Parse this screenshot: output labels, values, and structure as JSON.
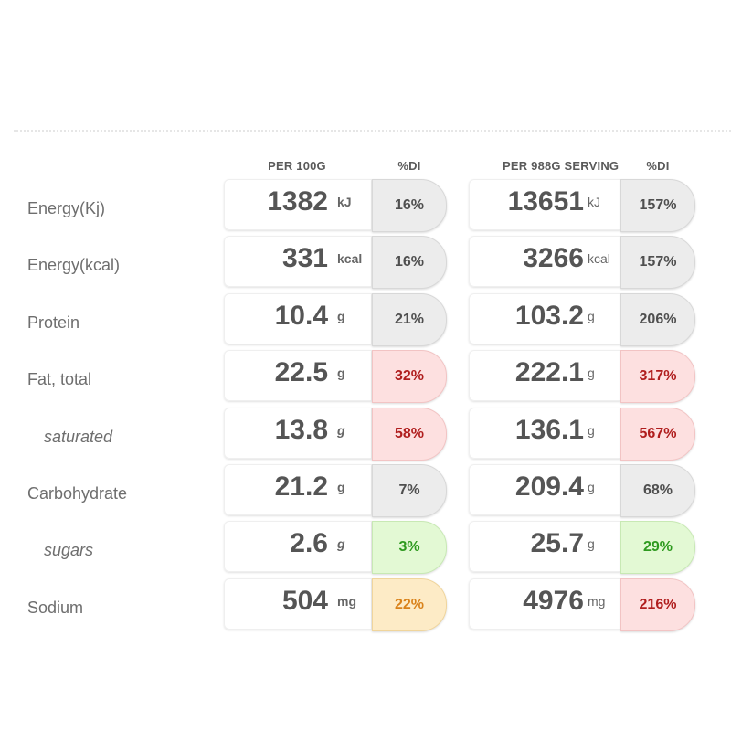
{
  "headers": {
    "per100": "PER 100G",
    "di1": "%DI",
    "serving": "PER 988G SERVING",
    "di2": "%DI"
  },
  "level_colors": {
    "neutral": "#ececec",
    "high": "#fde0e0",
    "low": "#e3f9d4",
    "medium": "#fdebc6"
  },
  "rows": [
    {
      "label": "Energy(Kj)",
      "sub": false,
      "per100": {
        "value": "1382",
        "unit": "kJ",
        "di": "16%",
        "level": "neutral"
      },
      "serving": {
        "value": "13651",
        "unit": "kJ",
        "di": "157%",
        "level": "neutral"
      }
    },
    {
      "label": "Energy(kcal)",
      "sub": false,
      "per100": {
        "value": "331",
        "unit": "kcal",
        "di": "16%",
        "level": "neutral"
      },
      "serving": {
        "value": "3266",
        "unit": "kcal",
        "di": "157%",
        "level": "neutral"
      }
    },
    {
      "label": "Protein",
      "sub": false,
      "per100": {
        "value": "10.4",
        "unit": "g",
        "di": "21%",
        "level": "neutral"
      },
      "serving": {
        "value": "103.2",
        "unit": "g",
        "di": "206%",
        "level": "neutral"
      }
    },
    {
      "label": "Fat, total",
      "sub": false,
      "per100": {
        "value": "22.5",
        "unit": "g",
        "di": "32%",
        "level": "high"
      },
      "serving": {
        "value": "222.1",
        "unit": "g",
        "di": "317%",
        "level": "high"
      }
    },
    {
      "label": "saturated",
      "sub": true,
      "per100": {
        "value": "13.8",
        "unit": "g",
        "di": "58%",
        "level": "high"
      },
      "serving": {
        "value": "136.1",
        "unit": "g",
        "di": "567%",
        "level": "high"
      }
    },
    {
      "label": "Carbohydrate",
      "sub": false,
      "per100": {
        "value": "21.2",
        "unit": "g",
        "di": "7%",
        "level": "neutral"
      },
      "serving": {
        "value": "209.4",
        "unit": "g",
        "di": "68%",
        "level": "neutral"
      }
    },
    {
      "label": "sugars",
      "sub": true,
      "per100": {
        "value": "2.6",
        "unit": "g",
        "di": "3%",
        "level": "low"
      },
      "serving": {
        "value": "25.7",
        "unit": "g",
        "di": "29%",
        "level": "low"
      }
    },
    {
      "label": "Sodium",
      "sub": false,
      "per100": {
        "value": "504",
        "unit": "mg",
        "di": "22%",
        "level": "medium"
      },
      "serving": {
        "value": "4976",
        "unit": "mg",
        "di": "216%",
        "level": "high"
      }
    }
  ]
}
